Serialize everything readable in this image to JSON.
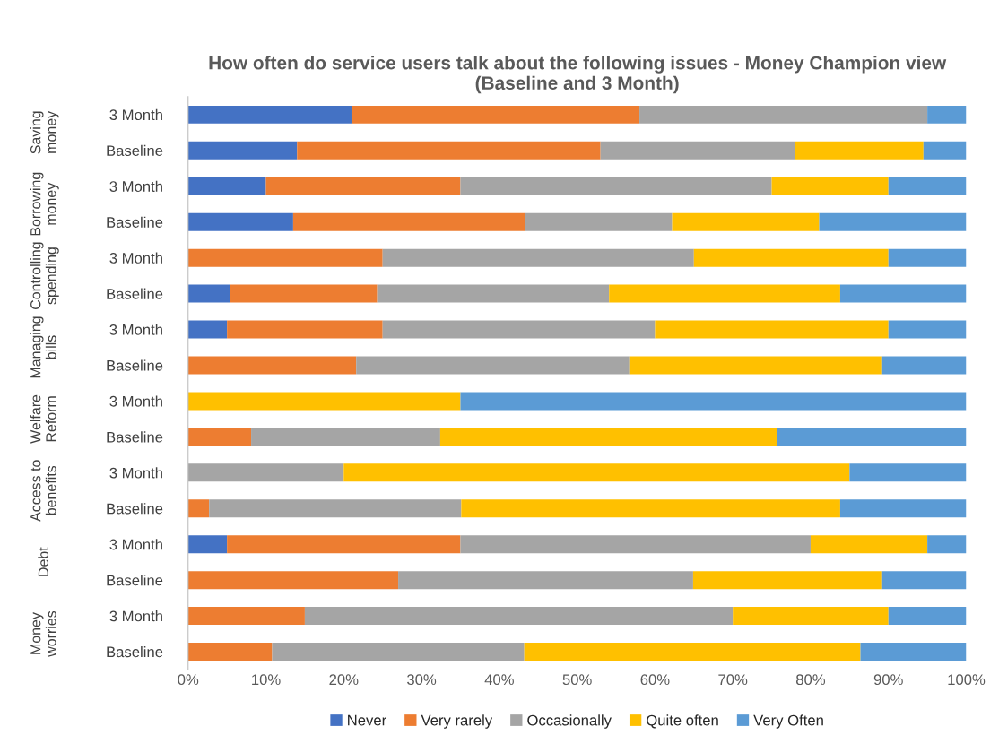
{
  "chart_data": {
    "type": "bar",
    "orientation": "horizontal",
    "stacked": true,
    "title": "How often do service users talk about the following issues - Money Champion view (Baseline and 3 Month)",
    "categories": [
      "3 Month",
      "Baseline",
      "3 Month",
      "Baseline",
      "3 Month",
      "Baseline",
      "3 Month",
      "Baseline",
      "3 Month",
      "Baseline",
      "3 Month",
      "Baseline",
      "3 Month",
      "Baseline",
      "3 Month",
      "Baseline"
    ],
    "annotations": [
      "Saving\nmoney",
      "Borrowing\nmoney",
      "Controlling\nspending",
      "Managing\nbills",
      "Welfare\nReform",
      "Access to\nbenefits",
      "Debt",
      "Money\nworries"
    ],
    "series": [
      {
        "name": "Never",
        "color": "#4472c4",
        "values": [
          21,
          14,
          10,
          13.5,
          0,
          5.4,
          5,
          0,
          0,
          0,
          0,
          0,
          5,
          0,
          0,
          0
        ]
      },
      {
        "name": "Very rarely",
        "color": "#ed7d31",
        "values": [
          37,
          39,
          25,
          29.8,
          25,
          18.9,
          20,
          21.6,
          0,
          8.1,
          0,
          2.7,
          30,
          27,
          15,
          10.8
        ]
      },
      {
        "name": "Occasionally",
        "color": "#a5a5a5",
        "values": [
          37,
          25,
          40,
          18.9,
          40,
          29.8,
          35,
          35.1,
          0,
          24.3,
          20,
          32.4,
          45,
          37.9,
          55,
          32.4
        ]
      },
      {
        "name": "Quite often",
        "color": "#ffc000",
        "values": [
          0,
          16.5,
          15,
          18.9,
          25,
          29.7,
          30,
          32.5,
          35,
          43.3,
          65,
          48.7,
          15,
          24.3,
          20,
          43.2
        ]
      },
      {
        "name": "Very Often",
        "color": "#5b9bd5",
        "values": [
          5,
          5.5,
          10,
          18.9,
          10,
          16.2,
          10,
          10.8,
          65,
          24.3,
          15,
          16.2,
          5,
          10.8,
          10,
          13.6
        ]
      }
    ],
    "xlim": [
      0,
      100
    ],
    "xticks": [
      {
        "value": 0,
        "label": "0%"
      },
      {
        "value": 10,
        "label": "10%"
      },
      {
        "value": 20,
        "label": "20%"
      },
      {
        "value": 30,
        "label": "30%"
      },
      {
        "value": 40,
        "label": "40%"
      },
      {
        "value": 50,
        "label": "50%"
      },
      {
        "value": 60,
        "label": "60%"
      },
      {
        "value": 70,
        "label": "70%"
      },
      {
        "value": 80,
        "label": "80%"
      },
      {
        "value": 90,
        "label": "90%"
      },
      {
        "value": 100,
        "label": "100%"
      }
    ],
    "legend": "bottom",
    "grid": false
  }
}
